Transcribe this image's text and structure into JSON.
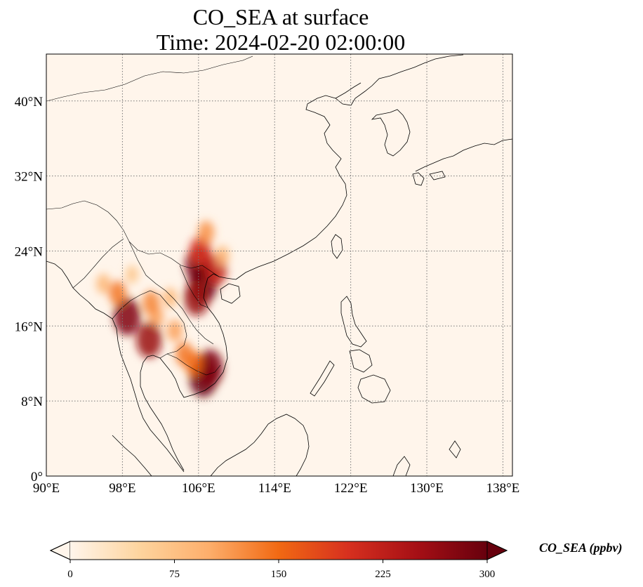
{
  "title": {
    "line1": "CO_SEA at surface",
    "line2": "Time: 2024-02-20 02:00:00"
  },
  "map": {
    "lon_range": [
      90,
      139
    ],
    "lat_range": [
      0,
      45
    ],
    "lon_ticks": [
      {
        "value": 90,
        "label": "90°E"
      },
      {
        "value": 98,
        "label": "98°E"
      },
      {
        "value": 106,
        "label": "106°E"
      },
      {
        "value": 114,
        "label": "114°E"
      },
      {
        "value": 122,
        "label": "122°E"
      },
      {
        "value": 130,
        "label": "130°E"
      },
      {
        "value": 138,
        "label": "138°E"
      }
    ],
    "lat_ticks": [
      {
        "value": 0,
        "label": "0°"
      },
      {
        "value": 8,
        "label": "8°N"
      },
      {
        "value": 16,
        "label": "16°N"
      },
      {
        "value": 24,
        "label": "24°N"
      },
      {
        "value": 32,
        "label": "32°N"
      },
      {
        "value": 40,
        "label": "40°N"
      }
    ],
    "gridlines": true,
    "background_color": "#fff5eb",
    "hotspots": [
      {
        "lon": 106.0,
        "lat": 22.5,
        "value": 280
      },
      {
        "lon": 106.5,
        "lat": 20.5,
        "value": 300
      },
      {
        "lon": 105.8,
        "lat": 19.0,
        "value": 260
      },
      {
        "lon": 106.2,
        "lat": 24.0,
        "value": 200
      },
      {
        "lon": 106.8,
        "lat": 26.0,
        "value": 120
      },
      {
        "lon": 107.8,
        "lat": 22.0,
        "value": 220
      },
      {
        "lon": 108.5,
        "lat": 23.5,
        "value": 90
      },
      {
        "lon": 106.5,
        "lat": 10.5,
        "value": 300
      },
      {
        "lon": 107.2,
        "lat": 11.5,
        "value": 280
      },
      {
        "lon": 105.5,
        "lat": 12.0,
        "value": 150
      },
      {
        "lon": 104.5,
        "lat": 13.0,
        "value": 140
      },
      {
        "lon": 103.5,
        "lat": 15.5,
        "value": 110
      },
      {
        "lon": 101.5,
        "lat": 17.0,
        "value": 110
      },
      {
        "lon": 100.8,
        "lat": 14.5,
        "value": 260
      },
      {
        "lon": 101.0,
        "lat": 18.5,
        "value": 130
      },
      {
        "lon": 98.5,
        "lat": 17.0,
        "value": 280
      },
      {
        "lon": 97.5,
        "lat": 19.5,
        "value": 140
      },
      {
        "lon": 96.0,
        "lat": 20.5,
        "value": 90
      },
      {
        "lon": 103.0,
        "lat": 19.0,
        "value": 90
      },
      {
        "lon": 99.0,
        "lat": 21.5,
        "value": 70
      }
    ]
  },
  "colorbar": {
    "label": "CO_SEA (ppbv)",
    "min": 0,
    "max": 300,
    "extend": "both",
    "colormap": "Oranges-Reds",
    "colors": [
      "#fff5eb",
      "#fdd49e",
      "#fdae6b",
      "#f16913",
      "#d7301f",
      "#a50f15",
      "#67000d"
    ],
    "ticks": [
      {
        "value": 0,
        "label": "0"
      },
      {
        "value": 75,
        "label": "75"
      },
      {
        "value": 150,
        "label": "150"
      },
      {
        "value": 225,
        "label": "225"
      },
      {
        "value": 300,
        "label": "300"
      }
    ]
  }
}
